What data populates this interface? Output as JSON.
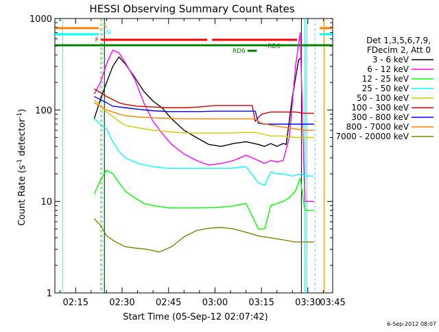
{
  "chart_data": {
    "type": "line",
    "title": "HESSI Observing Summary Count Rates",
    "xlabel": "Start Time (05-Sep-12 02:07:42)",
    "ylabel_main": "Count Rate (s",
    "ylabel_sup1": "-1",
    "ylabel_mid": " detector",
    "ylabel_sup2": "-1",
    "ylabel_end": ")",
    "y_scale": "log",
    "ylim": [
      1,
      1000
    ],
    "xlim_minutes": [
      8.3,
      98.0
    ],
    "x_ticks": [
      {
        "m": 15,
        "label": "02:15"
      },
      {
        "m": 30,
        "label": "02:30"
      },
      {
        "m": 45,
        "label": "02:45"
      },
      {
        "m": 60,
        "label": "03:00"
      },
      {
        "m": 75,
        "label": "03:15"
      },
      {
        "m": 90,
        "label": "03:30"
      },
      {
        "m": 105,
        "label": "03:45"
      }
    ],
    "y_ticks": [
      {
        "v": 1,
        "label": "1"
      },
      {
        "v": 10,
        "label": "10"
      },
      {
        "v": 100,
        "label": "100"
      },
      {
        "v": 1000,
        "label": "1000"
      }
    ],
    "legend_placement": "right",
    "legend_header": [
      "Det 1,3,5,6,7,9,",
      "FDecim 2, Att 0"
    ],
    "series": [
      {
        "name": "3 - 6 keV",
        "color": "#000000",
        "points": [
          [
            21,
            80
          ],
          [
            23,
            130
          ],
          [
            25,
            200
          ],
          [
            27,
            300
          ],
          [
            29,
            380
          ],
          [
            31,
            320
          ],
          [
            34,
            230
          ],
          [
            37,
            160
          ],
          [
            40,
            125
          ],
          [
            43,
            105
          ],
          [
            46,
            80
          ],
          [
            50,
            60
          ],
          [
            54,
            50
          ],
          [
            58,
            42
          ],
          [
            62,
            40
          ],
          [
            66,
            43
          ],
          [
            70,
            45
          ],
          [
            74,
            42
          ],
          [
            76,
            40
          ],
          [
            78,
            43
          ],
          [
            80,
            40
          ],
          [
            82,
            43
          ],
          [
            83,
            42
          ],
          [
            85,
            140
          ],
          [
            87,
            350
          ],
          [
            88,
            380
          ]
        ]
      },
      {
        "name": "6 - 12 keV",
        "color": "#ff00ff",
        "points": [
          [
            21,
            150
          ],
          [
            23,
            200
          ],
          [
            25,
            320
          ],
          [
            27,
            450
          ],
          [
            29,
            420
          ],
          [
            31,
            330
          ],
          [
            34,
            220
          ],
          [
            37,
            120
          ],
          [
            40,
            75
          ],
          [
            43,
            55
          ],
          [
            46,
            42
          ],
          [
            50,
            33
          ],
          [
            54,
            28
          ],
          [
            58,
            25
          ],
          [
            62,
            26
          ],
          [
            66,
            28
          ],
          [
            70,
            32
          ],
          [
            72,
            30
          ],
          [
            74,
            28
          ],
          [
            76,
            26
          ],
          [
            78,
            28
          ],
          [
            80,
            27
          ],
          [
            82,
            28
          ],
          [
            84,
            50
          ],
          [
            86,
            300
          ],
          [
            87.5,
            700
          ],
          [
            89,
            10
          ],
          [
            92,
            10
          ]
        ]
      },
      {
        "name": "12 - 25 keV",
        "color": "#00ff00",
        "points": [
          [
            21,
            12
          ],
          [
            23,
            17
          ],
          [
            25,
            22
          ],
          [
            27,
            20
          ],
          [
            29,
            16
          ],
          [
            31,
            13
          ],
          [
            34,
            11
          ],
          [
            37,
            9.5
          ],
          [
            40,
            9
          ],
          [
            45,
            8.5
          ],
          [
            50,
            8.5
          ],
          [
            55,
            8.5
          ],
          [
            60,
            8.6
          ],
          [
            65,
            8.8
          ],
          [
            70,
            9.5
          ],
          [
            74,
            5
          ],
          [
            76,
            5
          ],
          [
            78,
            9
          ],
          [
            80,
            9.5
          ],
          [
            82,
            10
          ],
          [
            84,
            11
          ],
          [
            86,
            13
          ],
          [
            87.5,
            18
          ],
          [
            89,
            8
          ],
          [
            92,
            8
          ]
        ]
      },
      {
        "name": "25 - 50 keV",
        "color": "#00ffff",
        "points": [
          [
            21,
            80
          ],
          [
            23,
            70
          ],
          [
            25,
            62
          ],
          [
            27,
            45
          ],
          [
            29,
            35
          ],
          [
            31,
            30
          ],
          [
            35,
            26
          ],
          [
            40,
            24
          ],
          [
            45,
            23
          ],
          [
            50,
            23
          ],
          [
            55,
            23
          ],
          [
            60,
            23
          ],
          [
            65,
            23
          ],
          [
            70,
            24
          ],
          [
            74,
            16
          ],
          [
            76,
            15
          ],
          [
            78,
            21
          ],
          [
            80,
            20
          ],
          [
            82,
            20
          ],
          [
            85,
            19
          ],
          [
            88,
            20
          ],
          [
            89,
            19
          ],
          [
            92,
            19
          ]
        ]
      },
      {
        "name": "50 - 100 keV",
        "color": "#cccc00",
        "points": [
          [
            21,
            130
          ],
          [
            23,
            110
          ],
          [
            25,
            95
          ],
          [
            27,
            85
          ],
          [
            29,
            75
          ],
          [
            31,
            68
          ],
          [
            35,
            64
          ],
          [
            40,
            60
          ],
          [
            45,
            58
          ],
          [
            50,
            56
          ],
          [
            55,
            56
          ],
          [
            60,
            56
          ],
          [
            65,
            56
          ],
          [
            70,
            57
          ],
          [
            73,
            57
          ],
          [
            75,
            55
          ],
          [
            78,
            52
          ],
          [
            82,
            52
          ],
          [
            86,
            50
          ],
          [
            89,
            50
          ],
          [
            92,
            50
          ]
        ]
      },
      {
        "name": "100 - 300 keV",
        "color": "#cc0000",
        "points": [
          [
            21,
            170
          ],
          [
            23,
            155
          ],
          [
            25,
            140
          ],
          [
            27,
            130
          ],
          [
            29,
            120
          ],
          [
            31,
            115
          ],
          [
            35,
            110
          ],
          [
            40,
            108
          ],
          [
            45,
            106
          ],
          [
            50,
            106
          ],
          [
            55,
            108
          ],
          [
            60,
            112
          ],
          [
            65,
            112
          ],
          [
            70,
            112
          ],
          [
            72,
            112
          ],
          [
            73,
            75
          ],
          [
            75,
            90
          ],
          [
            78,
            95
          ],
          [
            82,
            95
          ],
          [
            86,
            95
          ],
          [
            89,
            92
          ],
          [
            92,
            92
          ]
        ]
      },
      {
        "name": "300 - 800 keV",
        "color": "#0000ff",
        "points": [
          [
            21,
            140
          ],
          [
            23,
            130
          ],
          [
            25,
            120
          ],
          [
            27,
            110
          ],
          [
            29,
            108
          ],
          [
            31,
            106
          ],
          [
            35,
            102
          ],
          [
            40,
            98
          ],
          [
            45,
            96
          ],
          [
            50,
            96
          ],
          [
            55,
            96
          ],
          [
            60,
            97
          ],
          [
            65,
            97
          ],
          [
            70,
            97
          ],
          [
            73,
            97
          ],
          [
            74,
            72
          ],
          [
            76,
            70
          ],
          [
            80,
            70
          ],
          [
            84,
            70
          ],
          [
            89,
            70
          ],
          [
            92,
            70
          ]
        ]
      },
      {
        "name": "800 - 7000 keV",
        "color": "#ff8000",
        "points": [
          [
            21,
            120
          ],
          [
            23,
            110
          ],
          [
            25,
            100
          ],
          [
            27,
            95
          ],
          [
            29,
            90
          ],
          [
            31,
            87
          ],
          [
            35,
            84
          ],
          [
            40,
            82
          ],
          [
            45,
            81
          ],
          [
            50,
            80
          ],
          [
            55,
            80
          ],
          [
            60,
            80
          ],
          [
            65,
            80
          ],
          [
            70,
            80
          ],
          [
            73,
            80
          ],
          [
            75,
            72
          ],
          [
            78,
            68
          ],
          [
            82,
            65
          ],
          [
            86,
            62
          ],
          [
            89,
            60
          ],
          [
            92,
            60
          ]
        ]
      },
      {
        "name": "7000 - 20000 keV",
        "color": "#808000",
        "points": [
          [
            21,
            6.5
          ],
          [
            23,
            5.5
          ],
          [
            25,
            4.2
          ],
          [
            28,
            3.6
          ],
          [
            31,
            3.2
          ],
          [
            34,
            3.1
          ],
          [
            38,
            3.0
          ],
          [
            42,
            2.8
          ],
          [
            46,
            3.2
          ],
          [
            50,
            4.1
          ],
          [
            54,
            4.8
          ],
          [
            58,
            5.1
          ],
          [
            62,
            5.2
          ],
          [
            66,
            5.0
          ],
          [
            70,
            4.6
          ],
          [
            74,
            4.2
          ],
          [
            78,
            4.0
          ],
          [
            82,
            3.8
          ],
          [
            86,
            3.6
          ],
          [
            88,
            3.6
          ],
          [
            92,
            3.6
          ]
        ]
      }
    ],
    "flags": [
      {
        "label": "S",
        "color": "#ff8000"
      },
      {
        "label": "N",
        "color": "#00ffff"
      },
      {
        "label": "F",
        "color": "#ff0000"
      },
      {
        "label": "RD0",
        "color": "#008000"
      },
      {
        "label": "RD6",
        "color": "#008000"
      }
    ],
    "timestamp": "6-Sep-2012 08:07"
  }
}
